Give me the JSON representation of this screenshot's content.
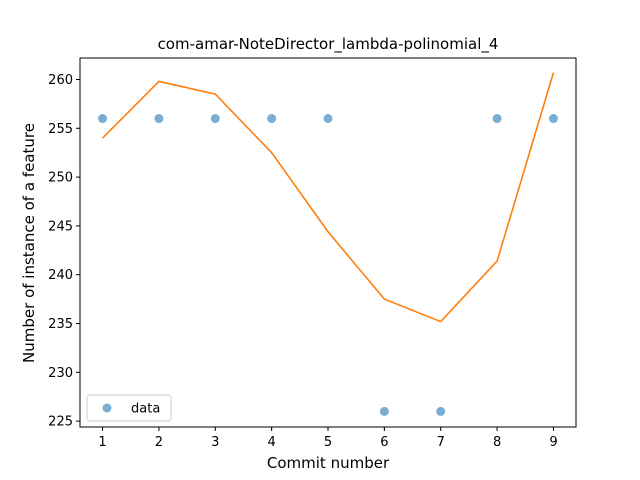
{
  "chart_data": {
    "type": "scatter",
    "title": "com-amar-NoteDirector_lambda-polinomial_4",
    "xlabel": "Commit number",
    "ylabel": "Number of instance of a feature",
    "xlim": [
      0.6,
      9.4
    ],
    "ylim": [
      224.4,
      262.2
    ],
    "xticks": [
      1,
      2,
      3,
      4,
      5,
      6,
      7,
      8,
      9
    ],
    "yticks": [
      225,
      230,
      235,
      240,
      245,
      250,
      255,
      260
    ],
    "grid": false,
    "legend_position": "lower-left",
    "series": [
      {
        "name": "data",
        "kind": "scatter",
        "color": "#1f77b4",
        "x": [
          1,
          2,
          3,
          4,
          5,
          6,
          7,
          8,
          9
        ],
        "y": [
          256,
          256,
          256,
          256,
          256,
          226,
          226,
          256,
          256
        ]
      },
      {
        "kind": "line",
        "color": "#ff7f0e",
        "x": [
          1,
          2,
          3,
          4,
          5,
          6,
          7,
          8,
          9
        ],
        "y": [
          254.0,
          259.8,
          258.5,
          252.5,
          244.4,
          237.5,
          235.2,
          241.4,
          260.7
        ]
      }
    ]
  }
}
